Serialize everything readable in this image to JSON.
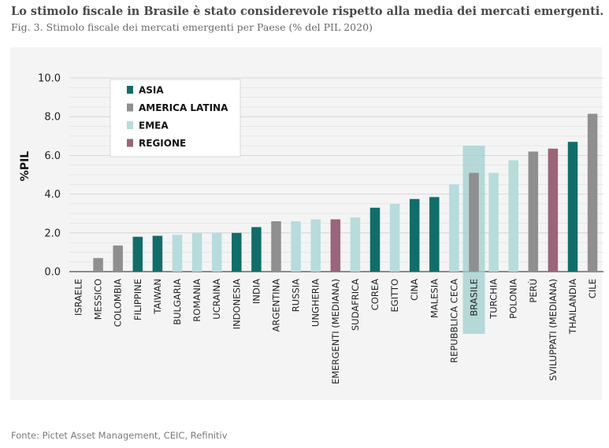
{
  "header": {
    "title": "Lo stimolo fiscale in Brasile è stato considerevole rispetto alla media dei mercati emergenti.",
    "subtitle": "Fig. 3. Stimolo fiscale dei mercati emergenti per Paese (% del PIL 2020)"
  },
  "footer": {
    "source": "Fonte: Pictet Asset Management, CEIC, Refinitiv"
  },
  "colors": {
    "ASIA": "#0f6e6a",
    "AMERICA LATINA": "#8f8f8f",
    "EMEA": "#b6dcdc",
    "REGIONE": "#9b6479",
    "highlight": "#9fd0cd"
  },
  "chart_data": {
    "type": "bar",
    "ylabel": "%PIL",
    "ylim": [
      0,
      10
    ],
    "yticks": [
      "0.0",
      "2.0",
      "4.0",
      "6.0",
      "8.0",
      "10.0"
    ],
    "grid": true,
    "legend_position": "top-left",
    "legend": [
      "ASIA",
      "AMERICA LATINA",
      "EMEA",
      "REGIONE"
    ],
    "highlighted_category": "BRASILE",
    "highlight_top": 6.5,
    "categories": [
      "ISRAELE",
      "MESSICO",
      "COLOMBIA",
      "FILIPPINE",
      "TAIWAN",
      "BULGARIA",
      "ROMANIA",
      "UCRAINA",
      "INDONESIA",
      "INDIA",
      "ARGENTINA",
      "RUSSIA",
      "UNGHERIA",
      "EMERGENTI (MEDIANA)",
      "SUDAFRICA",
      "COREA",
      "EGITTO",
      "CINA",
      "MALESIA",
      "REPUBBLICA CECA",
      "BRASILE",
      "TURCHIA",
      "POLONIA",
      "PERÙ",
      "SVILUPPATI (MEDIANA)",
      "THAILANDIA",
      "CILE"
    ],
    "values": [
      0.0,
      0.7,
      1.35,
      1.8,
      1.85,
      1.9,
      2.0,
      2.0,
      2.0,
      2.3,
      2.6,
      2.6,
      2.7,
      2.7,
      2.8,
      3.3,
      3.5,
      3.75,
      3.85,
      4.5,
      5.1,
      5.1,
      5.75,
      6.2,
      6.35,
      6.7,
      8.15
    ],
    "groups": [
      "EMEA",
      "AMERICA LATINA",
      "AMERICA LATINA",
      "ASIA",
      "ASIA",
      "EMEA",
      "EMEA",
      "EMEA",
      "ASIA",
      "ASIA",
      "AMERICA LATINA",
      "EMEA",
      "EMEA",
      "REGIONE",
      "EMEA",
      "ASIA",
      "EMEA",
      "ASIA",
      "ASIA",
      "EMEA",
      "AMERICA LATINA",
      "EMEA",
      "EMEA",
      "AMERICA LATINA",
      "REGIONE",
      "ASIA",
      "AMERICA LATINA"
    ]
  }
}
